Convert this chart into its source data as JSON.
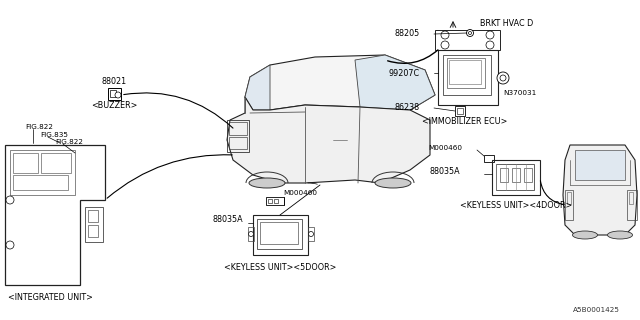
{
  "bg_color": "#ffffff",
  "lc": "#1a1a1a",
  "part_number_stamp": "A5B0001425",
  "fs": 5.8,
  "fs_tiny": 5.2,
  "labels": {
    "buzzer": "<BUZZER>",
    "immobilizer": "<IMMOBILIZER ECU>",
    "integrated": "<INTEGRATED UNIT>",
    "keyless_5door": "<KEYLESS UNIT><5DOOR>",
    "keyless_4door": "<KEYLESS UNIT><4DOOR>",
    "brkt": "BRKT HVAC D"
  },
  "pn": {
    "88021": "88021",
    "88205": "88205",
    "99207C": "99207C",
    "86238": "86238",
    "N370031": "N370031",
    "FIG822a": "FIG.822",
    "FIG835": "FIG.835",
    "FIG822b": "FIG.822",
    "88035A_5": "88035A",
    "M000460_5": "M000460",
    "88035A_4": "88035A",
    "M000460_4": "M000460"
  }
}
